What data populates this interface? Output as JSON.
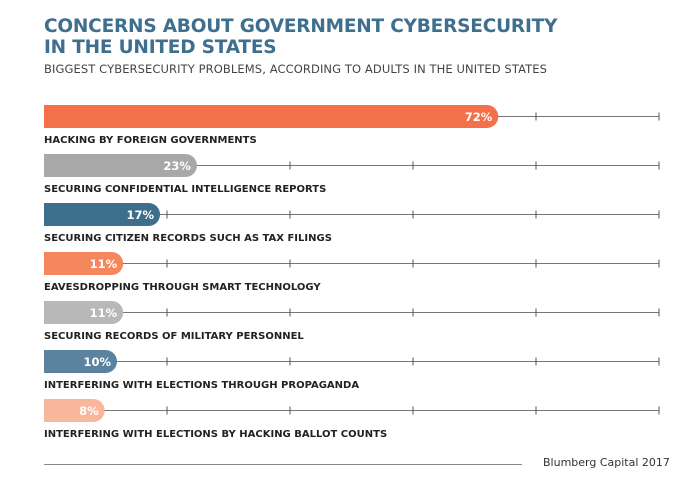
{
  "chart_data": {
    "type": "bar",
    "orientation": "horizontal",
    "title": "CONCERNS ABOUT GOVERNMENT CYBERSECURITY IN THE UNITED STATES",
    "subtitle": "BIGGEST CYBERSECURITY PROBLEMS, ACCORDING TO ADULTS IN THE UNITED STATES",
    "categories": [
      "HACKING BY FOREIGN GOVERNMENTS",
      "SECURING CONFIDENTIAL INTELLIGENCE REPORTS",
      "SECURING CITIZEN RECORDS SUCH AS TAX FILINGS",
      "EAVESDROPPING THROUGH SMART TECHNOLOGY",
      "SECURING RECORDS OF MILITARY PERSONNEL",
      "INTERFERING WITH ELECTIONS THROUGH PROPAGANDA",
      "INTERFERING WITH ELECTIONS BY HACKING BALLOT COUNTS"
    ],
    "values": [
      72,
      23,
      17,
      11,
      11,
      10,
      8
    ],
    "labels": [
      "72%",
      "23%",
      "17%",
      "11%",
      "11%",
      "10%",
      "8%"
    ],
    "colors": [
      "#f4704a",
      "#a8a8a8",
      "#3d6e8c",
      "#f5875f",
      "#b8b8b8",
      "#5b829e",
      "#f8b79c"
    ],
    "xlim": [
      0,
      100
    ],
    "ticks": [
      20,
      40,
      60,
      80,
      100
    ],
    "grid": false
  },
  "source": "Blumberg Capital 2017"
}
